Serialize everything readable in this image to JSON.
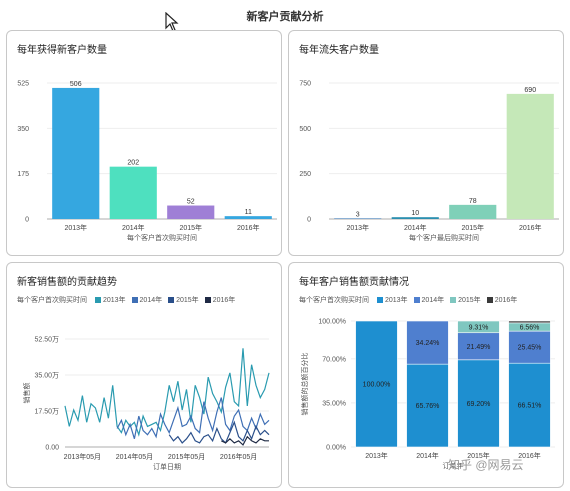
{
  "page": {
    "title": "新客户贡献分析"
  },
  "watermark": "知乎 @网易云",
  "panels": {
    "new_customers": {
      "title": "每年获得新客户数量"
    },
    "lost_customers": {
      "title": "每年流失客户数量"
    },
    "sales_trend": {
      "title": "新客销售额的贡献趋势",
      "legend_label": "每个客户首次购买时间"
    },
    "sales_share": {
      "title": "每年客户销售额贡献情况",
      "legend_label": "每个客户首次购买时间"
    }
  },
  "chart_data": [
    {
      "id": "new_customers",
      "type": "bar",
      "title": "每年获得新客户数量",
      "categories": [
        "2013年",
        "2014年",
        "2015年",
        "2016年"
      ],
      "values": [
        506,
        202,
        52,
        11
      ],
      "value_labels": [
        "506",
        "202",
        "52",
        "11"
      ],
      "colors": [
        "#35a7e0",
        "#4ee0bf",
        "#9f7fd6",
        "#35a7e0"
      ],
      "yticks": [
        "525",
        "350",
        "175",
        "0"
      ],
      "ytick_values": [
        525,
        350,
        175,
        0
      ],
      "ylim": [
        0,
        525
      ],
      "xlabel": "每个客户首次购买时间",
      "ylabel": ""
    },
    {
      "id": "lost_customers",
      "type": "bar",
      "title": "每年流失客户数量",
      "categories": [
        "2013年",
        "2014年",
        "2015年",
        "2016年"
      ],
      "values": [
        3,
        10,
        78,
        690
      ],
      "value_labels": [
        "3",
        "10",
        "78",
        "690"
      ],
      "colors": [
        "#2b6fb0",
        "#2b8fb0",
        "#7fd0b8",
        "#c5e8b8"
      ],
      "yticks": [
        "750",
        "500",
        "250",
        "0"
      ],
      "ytick_values": [
        750,
        500,
        250,
        0
      ],
      "ylim": [
        0,
        750
      ],
      "xlabel": "每个客户最后购买时间",
      "ylabel": ""
    },
    {
      "id": "sales_trend",
      "type": "line",
      "title": "新客销售额的贡献趋势",
      "xlabel": "订单日期",
      "ylabel": "销售额",
      "yticks": [
        "52.50万",
        "35.00万",
        "17.50万",
        "0.00"
      ],
      "ytick_values": [
        52.5,
        35,
        17.5,
        0
      ],
      "ylim": [
        0,
        52.5
      ],
      "xticks": [
        "2013年05月",
        "2014年05月",
        "2015年05月",
        "2016年05月"
      ],
      "xtick_positions": [
        4,
        16,
        28,
        40
      ],
      "x_count": 48,
      "series": [
        {
          "name": "2013年",
          "color": "#2a9bb0",
          "start": 0,
          "values": [
            20,
            10,
            18,
            13,
            25,
            12,
            21,
            19,
            12,
            24,
            14,
            30,
            10,
            7,
            13,
            10,
            12,
            6,
            15,
            10,
            11,
            12,
            8,
            17,
            30,
            22,
            32,
            18,
            28,
            12,
            30,
            24,
            16,
            34,
            26,
            22,
            17,
            29,
            36,
            22,
            20,
            48,
            20,
            40,
            30,
            24,
            28,
            36
          ]
        },
        {
          "name": "2014年",
          "color": "#3f6fb5",
          "start": 12,
          "values": [
            9,
            13,
            6,
            11,
            4,
            15,
            8,
            6,
            9,
            5,
            16,
            11,
            7,
            13,
            19,
            10,
            11,
            15,
            9,
            7,
            22,
            14,
            8,
            17,
            24,
            11,
            8,
            15,
            18,
            10,
            8,
            14,
            9,
            16,
            11,
            13
          ]
        },
        {
          "name": "2015年",
          "color": "#2a4f8a",
          "start": 24,
          "values": [
            6,
            3,
            5,
            2,
            4,
            7,
            3,
            2,
            5,
            6,
            3,
            9,
            4,
            2,
            7,
            12,
            5,
            3,
            8,
            4,
            10,
            6,
            8,
            6
          ]
        },
        {
          "name": "2016年",
          "color": "#1f2a44",
          "start": 36,
          "values": [
            3,
            2,
            4,
            2,
            3,
            1,
            5,
            3,
            2,
            4,
            3,
            3
          ]
        }
      ]
    },
    {
      "id": "sales_share",
      "type": "bar",
      "stacked": true,
      "percent": true,
      "title": "每年客户销售额贡献情况",
      "xlabel": "订单年",
      "ylabel": "销售额的总额百分比",
      "categories": [
        "2013年",
        "2014年",
        "2015年",
        "2016年"
      ],
      "yticks": [
        "100.00%",
        "70.00%",
        "35.00%",
        "0.00%"
      ],
      "ytick_values": [
        100,
        70,
        35,
        0
      ],
      "ylim": [
        0,
        100
      ],
      "series": [
        {
          "name": "2013年",
          "color": "#1e8fd0",
          "values": [
            100,
            65.76,
            69.2,
            66.51
          ],
          "labels": [
            "100.00%",
            "65.76%",
            "69.20%",
            "66.51%"
          ]
        },
        {
          "name": "2014年",
          "color": "#4f7fcf",
          "values": [
            0,
            34.24,
            21.49,
            25.45
          ],
          "labels": [
            "",
            "34.24%",
            "21.49%",
            "25.45%"
          ]
        },
        {
          "name": "2015年",
          "color": "#7fc7c0",
          "values": [
            0,
            0,
            9.31,
            6.56
          ],
          "labels": [
            "",
            "",
            "9.31%",
            "6.56%"
          ]
        },
        {
          "name": "2016年",
          "color": "#3a3a3a",
          "values": [
            0,
            0,
            0,
            1.48
          ],
          "labels": [
            "",
            "",
            "",
            ""
          ]
        }
      ]
    }
  ]
}
